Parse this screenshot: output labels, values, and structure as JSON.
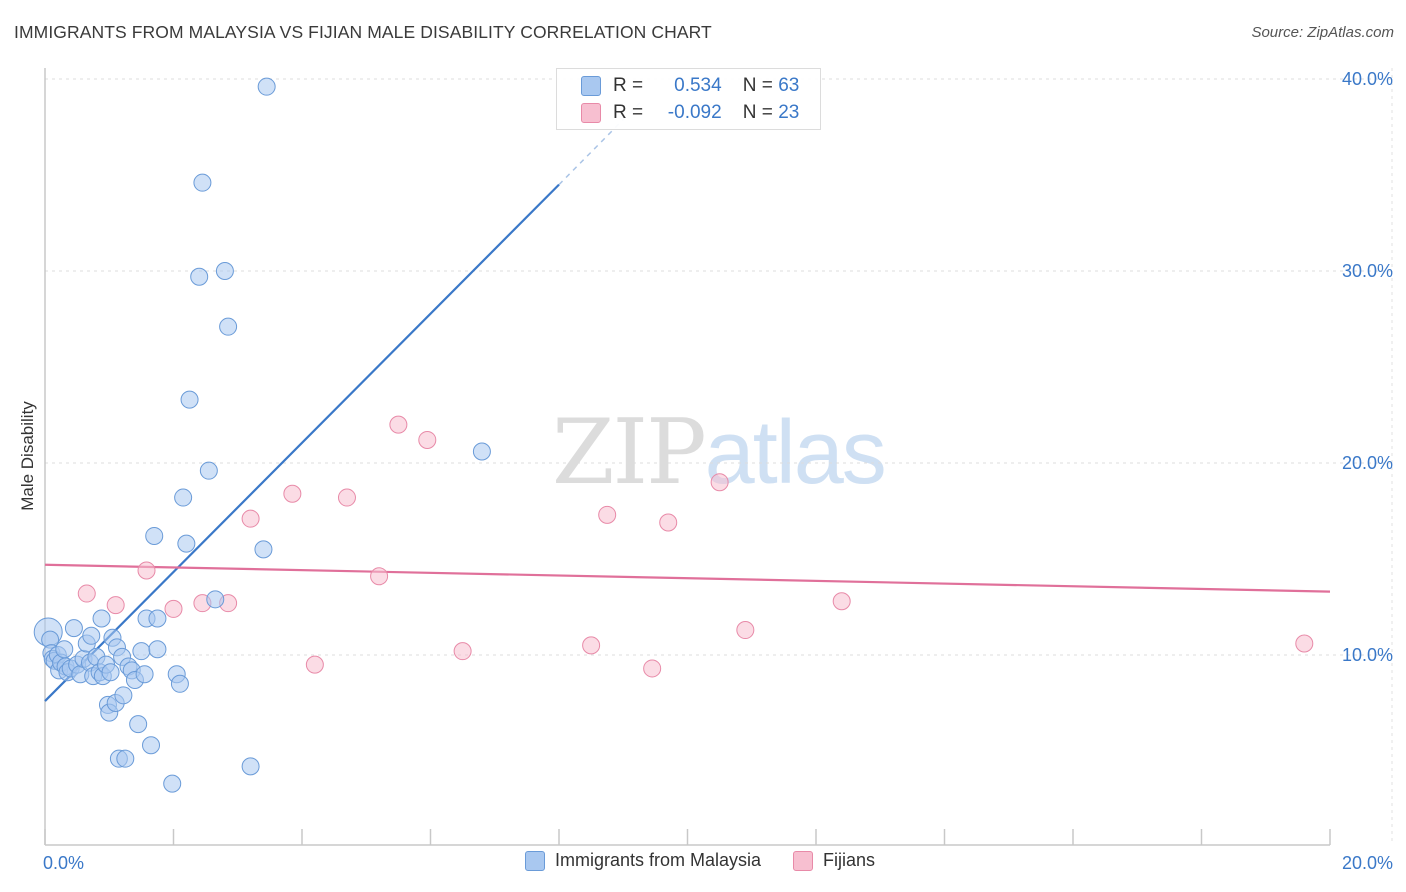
{
  "header": {
    "title": "IMMIGRANTS FROM MALAYSIA VS FIJIAN MALE DISABILITY CORRELATION CHART",
    "source": "Source: ZipAtlas.com"
  },
  "watermark": {
    "zip": "ZIP",
    "atlas": "atlas"
  },
  "legend": {
    "series1": {
      "r_label": "R =",
      "r_value": "0.534",
      "n_label": "N =",
      "n_value": "63"
    },
    "series2": {
      "r_label": "R =",
      "r_value": "-0.092",
      "n_label": "N =",
      "n_value": "23"
    }
  },
  "colors": {
    "malaysia_fill": "#a9c8f0",
    "malaysia_stroke": "#6a9bd8",
    "malaysia_line": "#3a78c8",
    "fijian_fill": "#f7bfd0",
    "fijian_stroke": "#e88aa8",
    "fijian_line": "#e0709a",
    "tick_text": "#3a78c8"
  },
  "chart_data": {
    "type": "scatter",
    "title": "IMMIGRANTS FROM MALAYSIA VS FIJIAN MALE DISABILITY CORRELATION CHART",
    "xlabel": "",
    "ylabel": "Male Disability",
    "xlim": [
      0,
      20
    ],
    "ylim": [
      0,
      42
    ],
    "x_tick_labels": [
      {
        "value": 0,
        "label": "0.0%"
      },
      {
        "value": 20,
        "label": "20.0%"
      }
    ],
    "y_tick_labels": [
      {
        "value": 10,
        "label": "10.0%"
      },
      {
        "value": 20,
        "label": "20.0%"
      },
      {
        "value": 30,
        "label": "30.0%"
      },
      {
        "value": 40,
        "label": "40.0%"
      }
    ],
    "x_minor_ticks": [
      0,
      2,
      4,
      6,
      8,
      10,
      12,
      14,
      16,
      18,
      20
    ],
    "legend_position": "bottom",
    "series": [
      {
        "name": "Immigrants from Malaysia",
        "R": 0.534,
        "N": 63,
        "trend": {
          "x0": 0,
          "y0": 7.6,
          "x1": 8,
          "y1": 34.5,
          "dash_x1": 9.3,
          "dash_y1": 38.9
        },
        "points": [
          {
            "x": 0.05,
            "y": 11.2,
            "big": true
          },
          {
            "x": 0.08,
            "y": 10.8
          },
          {
            "x": 0.1,
            "y": 10.1
          },
          {
            "x": 0.12,
            "y": 9.8
          },
          {
            "x": 0.15,
            "y": 9.7
          },
          {
            "x": 0.2,
            "y": 10.0
          },
          {
            "x": 0.22,
            "y": 9.2
          },
          {
            "x": 0.25,
            "y": 9.6
          },
          {
            "x": 0.3,
            "y": 10.3
          },
          {
            "x": 0.32,
            "y": 9.4
          },
          {
            "x": 0.35,
            "y": 9.1
          },
          {
            "x": 0.4,
            "y": 9.3
          },
          {
            "x": 0.45,
            "y": 11.4
          },
          {
            "x": 0.5,
            "y": 9.5
          },
          {
            "x": 0.55,
            "y": 9.0
          },
          {
            "x": 0.6,
            "y": 9.8
          },
          {
            "x": 0.65,
            "y": 10.6
          },
          {
            "x": 0.7,
            "y": 9.6
          },
          {
            "x": 0.72,
            "y": 11.0
          },
          {
            "x": 0.75,
            "y": 8.9
          },
          {
            "x": 0.8,
            "y": 9.9
          },
          {
            "x": 0.85,
            "y": 9.1
          },
          {
            "x": 0.88,
            "y": 11.9
          },
          {
            "x": 0.9,
            "y": 8.9
          },
          {
            "x": 0.95,
            "y": 9.5
          },
          {
            "x": 0.98,
            "y": 7.4
          },
          {
            "x": 1.0,
            "y": 7.0
          },
          {
            "x": 1.02,
            "y": 9.1
          },
          {
            "x": 1.05,
            "y": 10.9
          },
          {
            "x": 1.1,
            "y": 7.5
          },
          {
            "x": 1.12,
            "y": 10.4
          },
          {
            "x": 1.15,
            "y": 4.6
          },
          {
            "x": 1.2,
            "y": 9.9
          },
          {
            "x": 1.22,
            "y": 7.9
          },
          {
            "x": 1.25,
            "y": 4.6
          },
          {
            "x": 1.3,
            "y": 9.4
          },
          {
            "x": 1.35,
            "y": 9.2
          },
          {
            "x": 1.4,
            "y": 8.7
          },
          {
            "x": 1.45,
            "y": 6.4
          },
          {
            "x": 1.5,
            "y": 10.2
          },
          {
            "x": 1.55,
            "y": 9.0
          },
          {
            "x": 1.58,
            "y": 11.9
          },
          {
            "x": 1.65,
            "y": 5.3
          },
          {
            "x": 1.7,
            "y": 16.2
          },
          {
            "x": 1.75,
            "y": 10.3
          },
          {
            "x": 1.75,
            "y": 11.9
          },
          {
            "x": 1.98,
            "y": 3.3
          },
          {
            "x": 2.05,
            "y": 9.0
          },
          {
            "x": 2.1,
            "y": 8.5
          },
          {
            "x": 2.15,
            "y": 18.2
          },
          {
            "x": 2.2,
            "y": 15.8
          },
          {
            "x": 2.25,
            "y": 23.3
          },
          {
            "x": 2.4,
            "y": 29.7
          },
          {
            "x": 2.45,
            "y": 34.6
          },
          {
            "x": 2.55,
            "y": 19.6
          },
          {
            "x": 2.65,
            "y": 12.9
          },
          {
            "x": 2.8,
            "y": 30.0
          },
          {
            "x": 2.85,
            "y": 27.1
          },
          {
            "x": 3.2,
            "y": 4.2
          },
          {
            "x": 3.4,
            "y": 15.5
          },
          {
            "x": 3.45,
            "y": 39.6
          },
          {
            "x": 6.8,
            "y": 20.6
          }
        ]
      },
      {
        "name": "Fijians",
        "R": -0.092,
        "N": 23,
        "trend": {
          "x0": 0,
          "y0": 14.7,
          "x1": 20,
          "y1": 13.3
        },
        "points": [
          {
            "x": 0.65,
            "y": 13.2
          },
          {
            "x": 1.1,
            "y": 12.6
          },
          {
            "x": 1.58,
            "y": 14.4
          },
          {
            "x": 2.0,
            "y": 12.4
          },
          {
            "x": 2.45,
            "y": 12.7
          },
          {
            "x": 2.85,
            "y": 12.7
          },
          {
            "x": 3.2,
            "y": 17.1
          },
          {
            "x": 3.85,
            "y": 18.4
          },
          {
            "x": 4.2,
            "y": 9.5
          },
          {
            "x": 4.7,
            "y": 18.2
          },
          {
            "x": 5.2,
            "y": 14.1
          },
          {
            "x": 5.5,
            "y": 22.0
          },
          {
            "x": 5.95,
            "y": 21.2
          },
          {
            "x": 6.5,
            "y": 10.2
          },
          {
            "x": 8.5,
            "y": 10.5
          },
          {
            "x": 8.75,
            "y": 17.3
          },
          {
            "x": 9.45,
            "y": 9.3
          },
          {
            "x": 9.7,
            "y": 16.9
          },
          {
            "x": 10.5,
            "y": 19.0
          },
          {
            "x": 10.9,
            "y": 11.3
          },
          {
            "x": 12.4,
            "y": 12.8
          },
          {
            "x": 19.6,
            "y": 10.6
          }
        ]
      }
    ]
  },
  "bottom_legend": {
    "series1_label": "Immigrants from Malaysia",
    "series2_label": "Fijians"
  }
}
